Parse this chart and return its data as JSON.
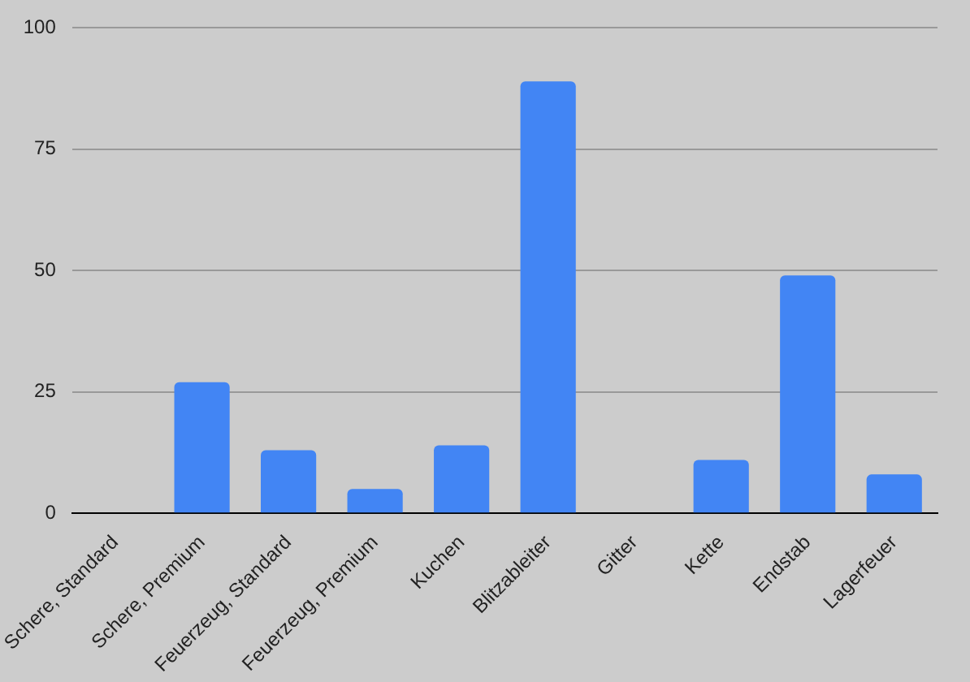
{
  "chart_data": {
    "type": "bar",
    "categories": [
      "Schere, Standard",
      "Schere, Premium",
      "Feuerzeug, Standard",
      "Feuerzeug, Premium",
      "Kuchen",
      "Blitzableiter",
      "Gitter",
      "Kette",
      "Endstab",
      "Lagerfeuer"
    ],
    "values": [
      0,
      27,
      13,
      5,
      14,
      89,
      0,
      11,
      49,
      8
    ],
    "color": "#4285f4",
    "ylim": [
      0,
      100
    ],
    "yticks": [
      0,
      25,
      50,
      75,
      100
    ],
    "grid": "y"
  }
}
